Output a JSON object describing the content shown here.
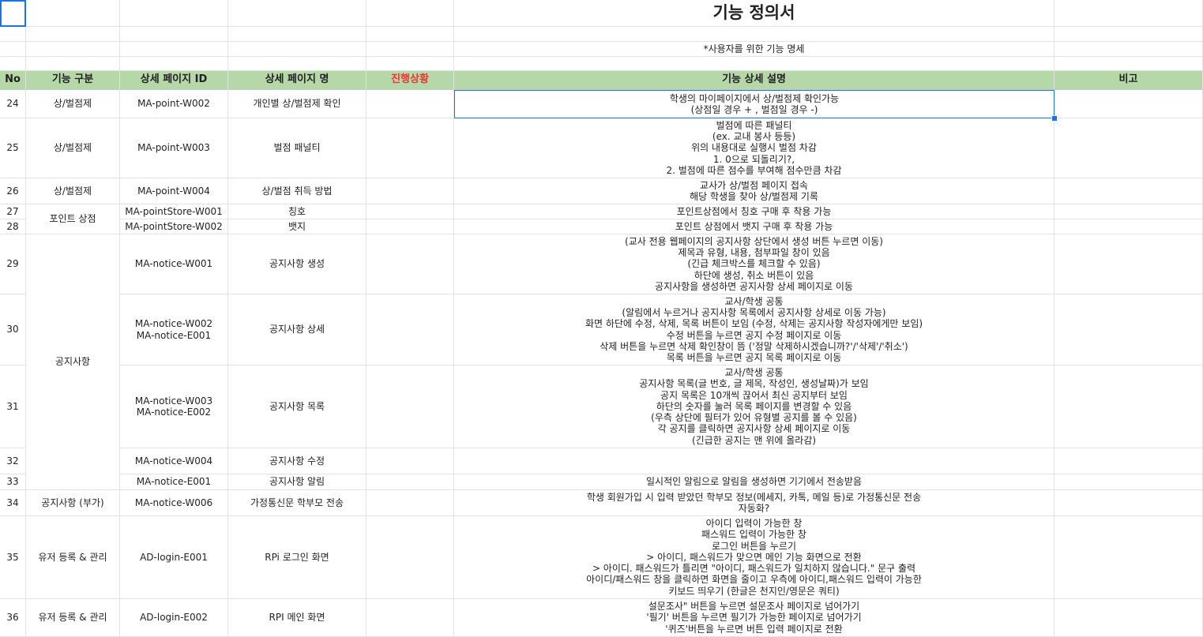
{
  "sheet": {
    "title": "기능 정의서",
    "subtitle": "*사용자를 위한 기능 명세",
    "headers": {
      "no": "No",
      "category": "기능 구분",
      "page_id": "상세 페이지 ID",
      "page_name": "상세 페이지 명",
      "progress": "진행상황",
      "description": "기능 상세 설명",
      "note": "비고"
    },
    "header_colors": {
      "fill": "#b6d7a8",
      "progress_text": "#e53935",
      "selection": "#1a73e8"
    },
    "categories": {
      "penalty": "상/벌점제",
      "store": "포인트 상점",
      "notice": "공지사항",
      "notice_extra": "공지사항 (부가)",
      "user_a": "유저 등록 & 관리",
      "user_b": "유저 등록 & 관리"
    },
    "rows": [
      {
        "no": "24",
        "id": "MA-point-W002",
        "name": "개인별 상/벌점제 확인",
        "desc": [
          "학생의 마이페이지에서 상/벌점제 확인가능",
          "(상점일 경우 + , 벌점일 경우 -)"
        ]
      },
      {
        "no": "25",
        "id": "MA-point-W003",
        "name": "벌점 패널티",
        "desc": [
          "벌점에 따른 패널티",
          "(ex. 교내 봉사 등등)",
          "위의 내용대로 실행시 벌점 차감",
          "1. 0으로 되돌리기?,",
          "2. 벌점에 따른 점수를 부여해 점수만큼 차감"
        ]
      },
      {
        "no": "26",
        "id": "MA-point-W004",
        "name": "상/벌점 취득 방법",
        "desc": [
          "교사가 상/벌점 페이지 접속",
          "해당 학생을 찾아 상/벌점제 기록"
        ]
      },
      {
        "no": "27",
        "id": "MA-pointStore-W001",
        "name": "칭호",
        "desc": [
          "포인트상점에서 칭호 구매 후 착용 가능"
        ]
      },
      {
        "no": "28",
        "id": "MA-pointStore-W002",
        "name": "뱃지",
        "desc": [
          "포인트 상점에서 뱃지 구매 후 착용 가능"
        ]
      },
      {
        "no": "29",
        "id": "MA-notice-W001",
        "name": "공지사항 생성",
        "desc": [
          "(교사 전용 웹페이지의 공지사항 상단에서 생성 버튼 누르면 이동)",
          "제목과 유형, 내용, 첨부파일 창이 있음",
          "(긴급 체크박스를 체크할 수 있음)",
          "하단에 생성, 취소 버튼이 있음",
          "공지사항을 생성하면 공지사항 상세 페이지로 이동"
        ]
      },
      {
        "no": "30",
        "id": [
          "MA-notice-W002",
          "MA-notice-E001"
        ],
        "name": "공지사항 상세",
        "desc": [
          "교사/학생 공통",
          "(알림에서 누르거나 공지사항 목록에서 공지사항 상세로 이동 가능)",
          "화면 하단에 수정, 삭제, 목록 버튼이 보임 (수정, 삭제는 공지사항 작성자에게만 보임)",
          "수정 버튼을 누르면 공지 수정 페이지로 이동",
          "삭제 버튼을 누르면 삭제 확인창이 뜸 ('정말 삭제하시겠습니까?'/'삭제'/'취소')",
          "목록 버튼을 누르면 공지 목록 페이지로 이동"
        ]
      },
      {
        "no": "31",
        "id": [
          "MA-notice-W003",
          "MA-notice-E002"
        ],
        "name": "공지사항 목록",
        "desc": [
          "교사/학생 공통",
          "공지사항 목록(글 번호, 글 제목, 작성인, 생성날짜)가 보임",
          "공지 목록은 10개씩 끊어서 최신 공지부터 보임",
          "하단의 숫자를 눌러 목록 페이지를 변경할 수 있음",
          "(우측 상단에 필터가 있어 유형별 공지를 볼 수 있음)",
          "각 공지를 클릭하면 공지사항 상세 페이지로 이동",
          "(긴급한 공지는 맨 위에 올라감)"
        ]
      },
      {
        "no": "32",
        "id": "MA-notice-W004",
        "name": "공지사항 수정",
        "desc": []
      },
      {
        "no": "33",
        "id": "MA-notice-E001",
        "name": "공지사항 알림",
        "desc": [
          "일시적인 알림으로 알림을 생성하면 기기에서 전송받음"
        ]
      },
      {
        "no": "34",
        "id": "MA-notice-W006",
        "name": "가정통신문 학부모 전송",
        "desc": [
          "학생 회원가입 시 입력 받았던 학부모 정보(메세지, 카톡, 메일 등)로 가정통신문 전송",
          "자동화?"
        ]
      },
      {
        "no": "35",
        "id": "AD-login-E001",
        "name": "RPi 로그인 화면",
        "desc": [
          "아이디 입력이 가능한 창",
          "패스워드 입력이 가능한 창",
          "로그인 버튼을 누르기",
          "> 아이디, 패스워드가 맞으면 메인 기능 화면으로 전환",
          "> 아이디. 패스워드가 틀리면 \"아이디, 패스워드가 일치하지 않습니다.\" 문구 출력",
          "아이디/패스워드 창을 클릭하면 화면을 줄이고 우측에 아이디,패스워드 입력이 가능한",
          "키보드 띄우기 (한글은 천지인/영문은 쿼티)"
        ]
      },
      {
        "no": "36",
        "id": "AD-login-E002",
        "name": "RPI 메인 화면",
        "desc": [
          "설문조사\" 버튼을 누르면 설문조사 페이지로 넘어가기",
          "'필기' 버튼을 누르면 필기가 가능한 페이지로 넘어가기",
          "'퀴즈'버튼을 누르면 버튼 입력 페이지로 전환"
        ]
      }
    ]
  }
}
